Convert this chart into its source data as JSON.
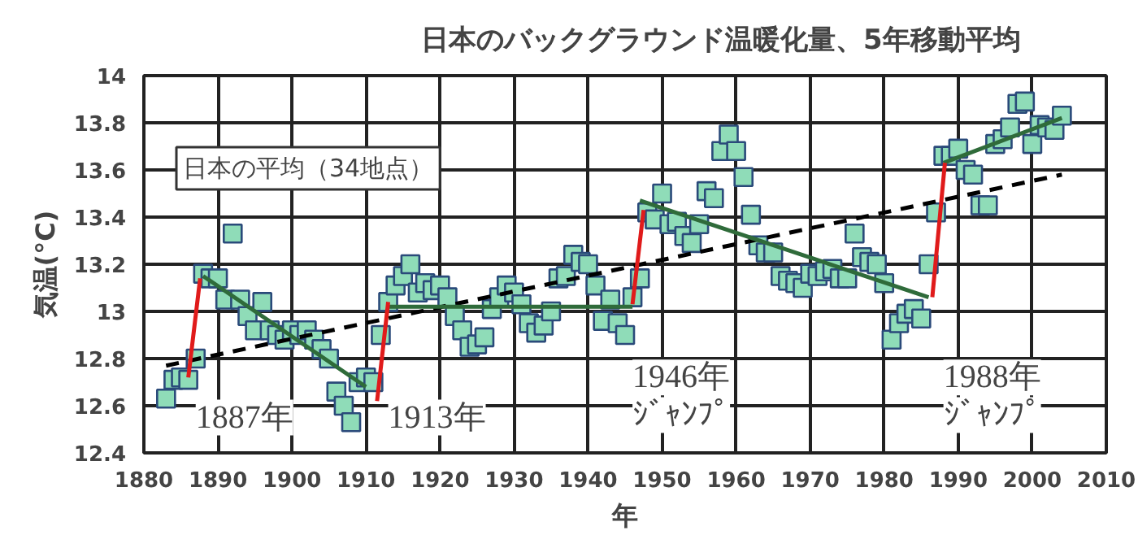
{
  "chart_data": {
    "type": "scatter",
    "xlabel": "年",
    "ylabel": "気温(°C)",
    "xlim": [
      1880,
      2010
    ],
    "ylim": [
      12.4,
      14
    ],
    "xticks": [
      1880,
      1890,
      1900,
      1910,
      1920,
      1930,
      1940,
      1950,
      1960,
      1970,
      1980,
      1990,
      2000,
      2010
    ],
    "yticks": [
      12.4,
      12.6,
      12.8,
      {
        "value": 13,
        "label": "13"
      },
      13.2,
      13.4,
      13.6,
      13.8,
      {
        "value": 14,
        "label": "14"
      }
    ],
    "grid": true,
    "legend": "top",
    "series": [
      {
        "name": "日本のバックグラウンド温暖化量、5年移動平均",
        "color": "#8fdcb8",
        "marker": "square",
        "x": [
          1883,
          1884,
          1885,
          1886,
          1887,
          1888,
          1889,
          1890,
          1891,
          1892,
          1893,
          1894,
          1895,
          1896,
          1897,
          1898,
          1899,
          1900,
          1901,
          1902,
          1903,
          1904,
          1905,
          1906,
          1907,
          1908,
          1909,
          1910,
          1911,
          1912,
          1913,
          1914,
          1915,
          1916,
          1917,
          1918,
          1919,
          1920,
          1921,
          1922,
          1923,
          1924,
          1925,
          1926,
          1927,
          1928,
          1929,
          1930,
          1931,
          1932,
          1933,
          1934,
          1935,
          1936,
          1937,
          1938,
          1939,
          1940,
          1941,
          1942,
          1943,
          1944,
          1945,
          1946,
          1947,
          1948,
          1949,
          1950,
          1951,
          1952,
          1953,
          1954,
          1955,
          1956,
          1957,
          1958,
          1959,
          1960,
          1961,
          1962,
          1963,
          1964,
          1965,
          1966,
          1967,
          1968,
          1969,
          1970,
          1971,
          1972,
          1973,
          1974,
          1975,
          1976,
          1977,
          1978,
          1979,
          1980,
          1981,
          1982,
          1983,
          1984,
          1985,
          1986,
          1987,
          1988,
          1989,
          1990,
          1991,
          1992,
          1993,
          1994,
          1995,
          1996,
          1997,
          1998,
          1999,
          2000,
          2001,
          2002,
          2003,
          2004
        ],
        "values": [
          12.63,
          12.71,
          12.72,
          12.71,
          12.8,
          13.16,
          13.14,
          13.14,
          13.05,
          13.33,
          13.05,
          12.98,
          12.92,
          13.04,
          12.92,
          12.9,
          12.88,
          12.92,
          12.9,
          12.92,
          12.88,
          12.84,
          12.8,
          12.66,
          12.6,
          12.53,
          12.7,
          12.72,
          12.7,
          12.9,
          13.04,
          13.11,
          13.15,
          13.2,
          13.08,
          13.12,
          13.09,
          13.11,
          13.06,
          12.98,
          12.92,
          12.85,
          12.86,
          12.89,
          13.01,
          13.06,
          13.11,
          13.08,
          13.03,
          12.95,
          12.91,
          12.94,
          13.0,
          13.14,
          13.15,
          13.24,
          13.21,
          13.2,
          13.11,
          12.96,
          13.05,
          12.95,
          12.9,
          13.06,
          13.14,
          13.42,
          13.39,
          13.5,
          13.37,
          13.38,
          13.32,
          13.29,
          13.37,
          13.51,
          13.48,
          13.68,
          13.75,
          13.68,
          13.57,
          13.41,
          13.28,
          13.25,
          13.25,
          13.15,
          13.13,
          13.12,
          13.1,
          13.16,
          13.15,
          13.17,
          13.18,
          13.14,
          13.14,
          13.33,
          13.23,
          13.21,
          13.2,
          13.12,
          12.88,
          12.95,
          12.99,
          13.01,
          12.97,
          13.2,
          13.42,
          13.66,
          13.66,
          13.69,
          13.6,
          13.58,
          13.45,
          13.45,
          13.71,
          13.73,
          13.78,
          13.88,
          13.89,
          13.71,
          13.79,
          13.78,
          13.77,
          13.83
        ]
      },
      {
        "type": "line",
        "color": "#000000",
        "line_style": "dashed",
        "x": [
          1883,
          2004
        ],
        "values": [
          12.77,
          13.58
        ]
      },
      {
        "type": "line",
        "color": "#2f6b3a",
        "line_style": "solid",
        "x": [
          1888,
          1910,
          null,
          1913,
          1946,
          null,
          1947,
          1986,
          null,
          1988,
          2004
        ],
        "values": [
          13.15,
          12.68,
          null,
          13.02,
          13.02,
          null,
          13.47,
          13.06,
          null,
          13.63,
          13.82
        ]
      },
      {
        "type": "line",
        "color": "#e01b1b",
        "line_style": "solid",
        "x": [
          1886,
          1887.6,
          null,
          1911.5,
          1913,
          null,
          1946,
          1947.5,
          null,
          1986.5,
          1988.2
        ],
        "values": [
          12.72,
          13.14,
          null,
          12.62,
          13.04,
          null,
          13.03,
          13.43,
          null,
          13.06,
          13.63
        ]
      }
    ],
    "annotations": [
      "日本の平均（34地点）",
      "1887年",
      "1913年",
      "1946年",
      "ｼﾞｬﾝﾌﾟ",
      "1988年",
      "ｼﾞｬﾝﾌﾟ"
    ]
  }
}
